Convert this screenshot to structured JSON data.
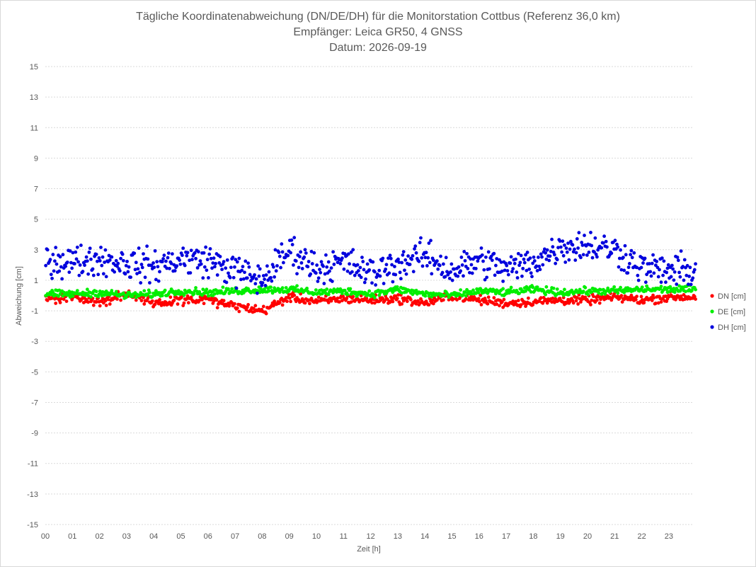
{
  "chart_data": {
    "type": "scatter",
    "title_lines": [
      "Tägliche Koordinatenabweichung (DN/DE/DH) für die Monitorstation Cottbus (Referenz 36,0 km)",
      "Empfänger: Leica GR50, 4 GNSS",
      "Datum: 2026-09-19"
    ],
    "xlabel": "Zeit [h]",
    "ylabel": "Abweichung [cm]",
    "ylim": [
      -15,
      15
    ],
    "y_ticks": [
      15,
      13,
      11,
      9,
      7,
      5,
      3,
      1,
      -1,
      -3,
      -5,
      -7,
      -9,
      -11,
      -13,
      -15
    ],
    "xlim": [
      0,
      24
    ],
    "x_ticks": [
      "00",
      "01",
      "02",
      "03",
      "04",
      "05",
      "06",
      "07",
      "08",
      "09",
      "10",
      "11",
      "12",
      "13",
      "14",
      "15",
      "16",
      "17",
      "18",
      "19",
      "20",
      "21",
      "22",
      "23"
    ],
    "grid": "horizontal dotted",
    "legend_position": "right",
    "samples_per_hour": 30,
    "series": [
      {
        "name": "DN [cm]",
        "color": "#ff0000",
        "hourly_mean": [
          -0.2,
          -0.1,
          -0.4,
          0.1,
          -0.5,
          -0.3,
          -0.3,
          -0.7,
          -1.0,
          -0.1,
          -0.4,
          -0.2,
          -0.3,
          -0.2,
          -0.5,
          0.0,
          -0.3,
          -0.5,
          -0.4,
          -0.3,
          -0.3,
          -0.1,
          -0.3,
          -0.1
        ],
        "spread": 0.25
      },
      {
        "name": "DE [cm]",
        "color": "#00ee00",
        "hourly_mean": [
          0.1,
          0.1,
          0.2,
          0.0,
          0.1,
          0.3,
          0.2,
          0.3,
          0.4,
          0.4,
          0.2,
          0.3,
          0.1,
          0.4,
          0.1,
          0.0,
          0.3,
          0.2,
          0.4,
          0.2,
          0.3,
          0.3,
          0.4,
          0.4
        ],
        "spread": 0.2
      },
      {
        "name": "DH [cm]",
        "color": "#0000dd",
        "hourly_mean": [
          2.4,
          2.2,
          2.4,
          2.1,
          1.9,
          2.4,
          2.3,
          1.6,
          1.0,
          3.0,
          1.8,
          2.2,
          1.4,
          2.1,
          2.6,
          1.6,
          2.3,
          1.7,
          2.2,
          3.2,
          3.3,
          3.0,
          1.8,
          1.6
        ],
        "spread": 0.9
      }
    ]
  }
}
